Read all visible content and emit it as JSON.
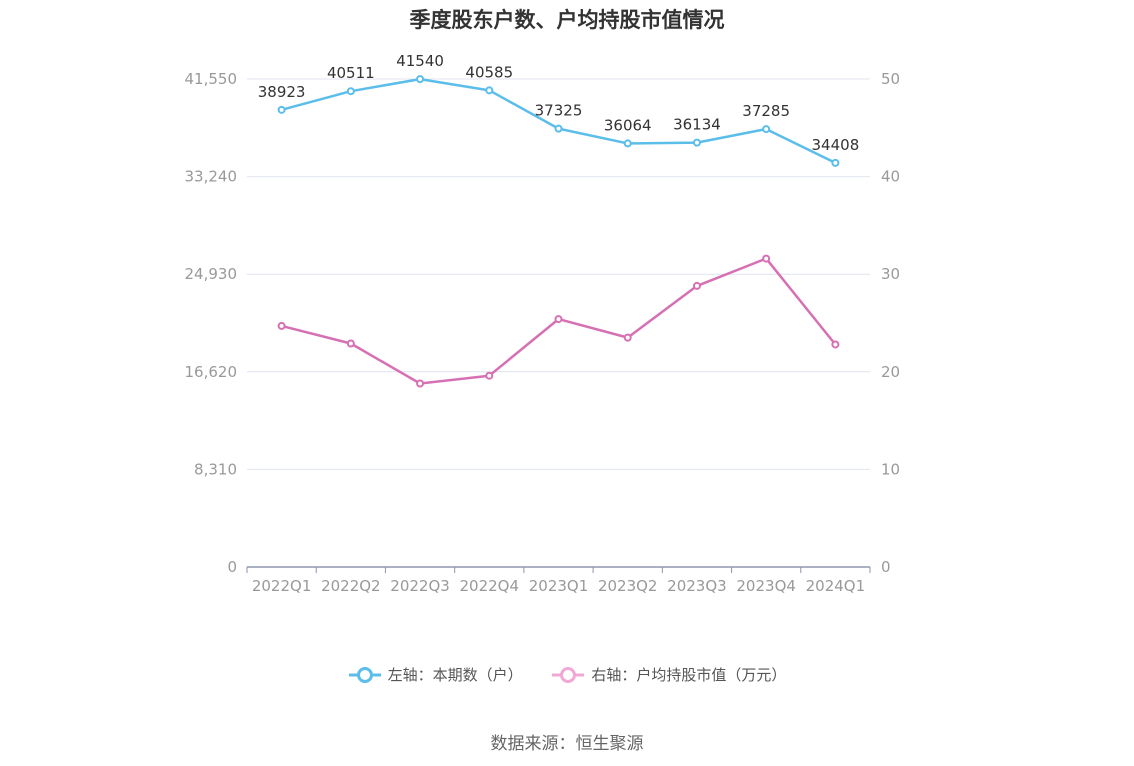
{
  "chart_data": {
    "type": "line",
    "title": "季度股东户数、户均持股市值情况",
    "categories": [
      "2022Q1",
      "2022Q2",
      "2022Q3",
      "2022Q4",
      "2023Q1",
      "2023Q2",
      "2023Q3",
      "2023Q4",
      "2024Q1"
    ],
    "series": [
      {
        "name": "左轴：本期数（户）",
        "axis": "left",
        "color": "#5bbdea",
        "values": [
          38923,
          40511,
          41540,
          40585,
          37325,
          36064,
          36134,
          37285,
          34408
        ],
        "labels": [
          "38923",
          "40511",
          "41540",
          "40585",
          "37325",
          "36064",
          "36134",
          "37285",
          "34408"
        ]
      },
      {
        "name": "右轴：户均持股市值（万元）",
        "axis": "right",
        "color": "#d670b3",
        "legend_color": "#f0a8d4",
        "values": [
          24.7,
          22.9,
          18.8,
          19.6,
          25.4,
          23.5,
          28.8,
          31.6,
          22.8
        ]
      }
    ],
    "left_axis": {
      "ylim": [
        0,
        41550
      ],
      "ticks": [
        "0",
        "8,310",
        "16,620",
        "24,930",
        "33,240",
        "41,550"
      ]
    },
    "right_axis": {
      "ylim": [
        0,
        50
      ],
      "ticks": [
        "0",
        "10",
        "20",
        "30",
        "40",
        "50"
      ]
    },
    "grid": true,
    "legend_position": "bottom"
  },
  "source": "数据来源：恒生聚源"
}
